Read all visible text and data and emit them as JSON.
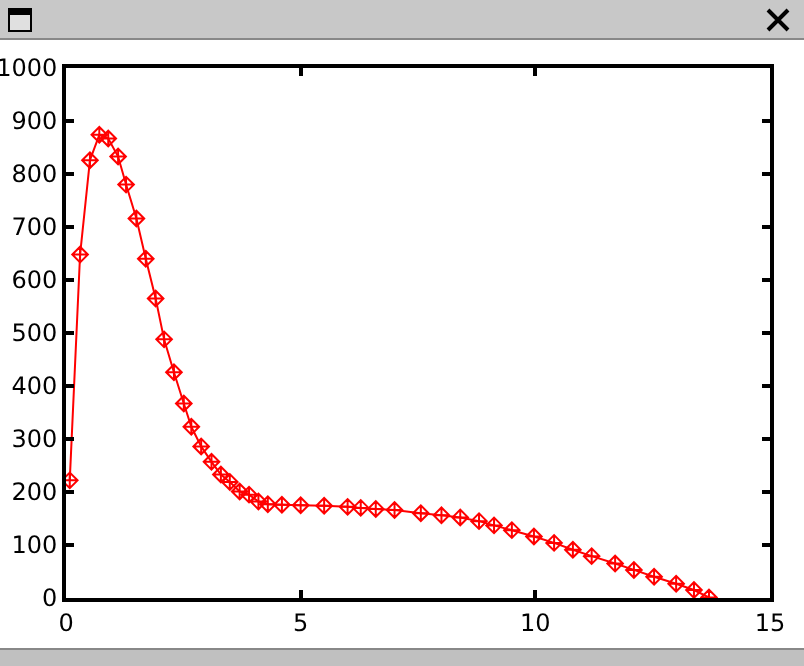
{
  "chart_data": {
    "type": "line",
    "x": [
      0.08,
      0.3,
      0.51,
      0.71,
      0.9,
      1.11,
      1.28,
      1.5,
      1.7,
      1.91,
      2.09,
      2.3,
      2.51,
      2.67,
      2.88,
      3.1,
      3.3,
      3.49,
      3.7,
      3.9,
      4.1,
      4.3,
      4.6,
      5.0,
      5.5,
      6.0,
      6.28,
      6.6,
      7.0,
      7.56,
      8.0,
      8.4,
      8.8,
      9.12,
      9.5,
      9.97,
      10.4,
      10.8,
      11.2,
      11.7,
      12.1,
      12.53,
      13.0,
      13.38,
      13.7
    ],
    "series": [
      {
        "color": "#ff0000",
        "values": [
          222,
          648,
          826,
          874,
          867,
          833,
          780,
          716,
          640,
          565,
          488,
          426,
          367,
          323,
          286,
          257,
          233,
          219,
          201,
          195,
          182,
          177,
          176,
          175,
          174,
          172,
          170,
          168,
          166,
          160,
          156,
          152,
          145,
          137,
          128,
          116,
          104,
          91,
          79,
          65,
          53,
          40,
          27,
          15,
          1
        ]
      }
    ],
    "xlim": [
      0,
      15
    ],
    "xticks": [
      0,
      5,
      10,
      15
    ],
    "ylim": [
      0,
      1000
    ],
    "yticks": [
      0,
      100,
      200,
      300,
      400,
      500,
      600,
      700,
      800,
      900,
      1000
    ],
    "grid": false,
    "marker": "diamond",
    "line_style": "solid"
  }
}
